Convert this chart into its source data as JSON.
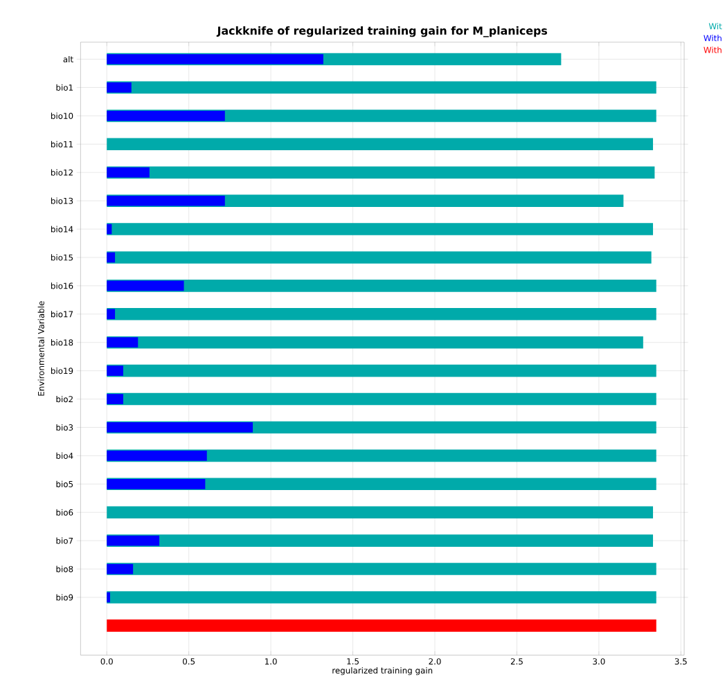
{
  "chart_data": {
    "type": "bar",
    "orientation": "horizontal",
    "title": "Jackknife of regularized training gain for M_planiceps",
    "xlabel": "regularized training gain",
    "ylabel": "Environmental Variable",
    "categories": [
      "alt",
      "bio1",
      "bio10",
      "bio11",
      "bio12",
      "bio13",
      "bio14",
      "bio15",
      "bio16",
      "bio17",
      "bio18",
      "bio19",
      "bio2",
      "bio3",
      "bio4",
      "bio5",
      "bio6",
      "bio7",
      "bio8",
      "bio9",
      null
    ],
    "series": [
      {
        "name": "Wit",
        "color": "#00aaaa",
        "values": [
          2.77,
          3.35,
          3.35,
          3.33,
          3.34,
          3.15,
          3.33,
          3.32,
          3.35,
          3.35,
          3.27,
          3.35,
          3.35,
          3.35,
          3.35,
          3.35,
          3.33,
          3.33,
          3.35,
          3.35,
          null
        ]
      },
      {
        "name": "With",
        "color": "#0000ff",
        "values": [
          1.32,
          0.15,
          0.72,
          0,
          0.26,
          0.72,
          0.03,
          0.05,
          0.47,
          0.05,
          0.19,
          0.1,
          0.1,
          0.89,
          0.61,
          0.6,
          0,
          0.32,
          0.16,
          0.02,
          null
        ]
      },
      {
        "name": "With",
        "color": "#ff0000",
        "values": [
          null,
          null,
          null,
          null,
          null,
          null,
          null,
          null,
          null,
          null,
          null,
          null,
          null,
          null,
          null,
          null,
          null,
          null,
          null,
          null,
          3.35
        ]
      }
    ],
    "xlim": [
      -0.16,
      3.52
    ],
    "xticks": [
      {
        "value": 0,
        "label": "0.0"
      },
      {
        "value": 0.5,
        "label": "0.5"
      },
      {
        "value": 1,
        "label": "1.0"
      },
      {
        "value": 1.5,
        "label": "1.5"
      },
      {
        "value": 2,
        "label": "2.0"
      },
      {
        "value": 2.5,
        "label": "2.5"
      },
      {
        "value": 3,
        "label": "3.0"
      },
      {
        "value": 3.5,
        "label": "3.5"
      }
    ],
    "grid": true,
    "legend": "right"
  }
}
